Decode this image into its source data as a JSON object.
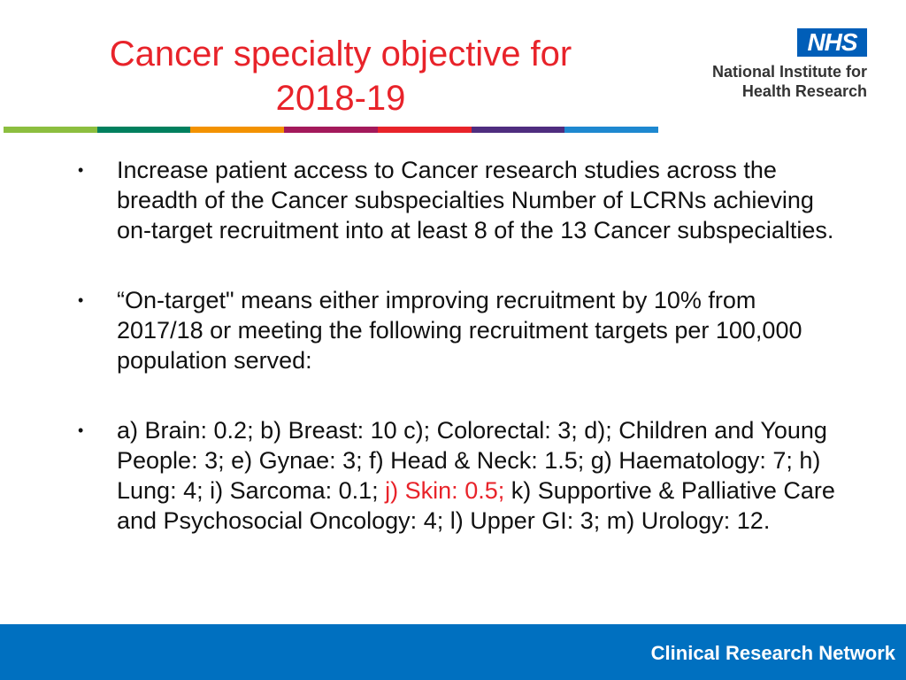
{
  "title": {
    "line1": "Cancer specialty objective for",
    "line2": "2018-19"
  },
  "logo": {
    "badge": "NHS",
    "line1": "National Institute for",
    "line2": "Health Research"
  },
  "stripe_colors": [
    "#8cbe3f",
    "#00805e",
    "#f39200",
    "#a3195b",
    "#e8232a",
    "#4f2d7f",
    "#1e88d0"
  ],
  "bullets": [
    {
      "text": "Increase patient access to Cancer research studies across the breadth of the Cancer subspecialties Number of LCRNs achieving on-target recruitment into at least 8 of the 13 Cancer subspecialties."
    },
    {
      "text": "“On-target\" means either improving recruitment by 10% from 2017/18 or meeting the following recruitment targets per 100,000 population served:"
    },
    {
      "before": "a) Brain: 0.2; b) Breast: 10 c); Colorectal: 3; d); Children and Young People: 3; e) Gynae: 3; f) Head & Neck: 1.5; g) Haematology: 7; h) Lung: 4; i) Sarcoma: 0.1; ",
      "highlight": "j) Skin: 0.5;",
      "after": " k) Supportive & Palliative Care and Psychosocial Oncology: 4; l) Upper GI: 3; m) Urology: 12."
    }
  ],
  "bullet_symbol": "•",
  "footer": {
    "label": "Clinical Research Network"
  }
}
